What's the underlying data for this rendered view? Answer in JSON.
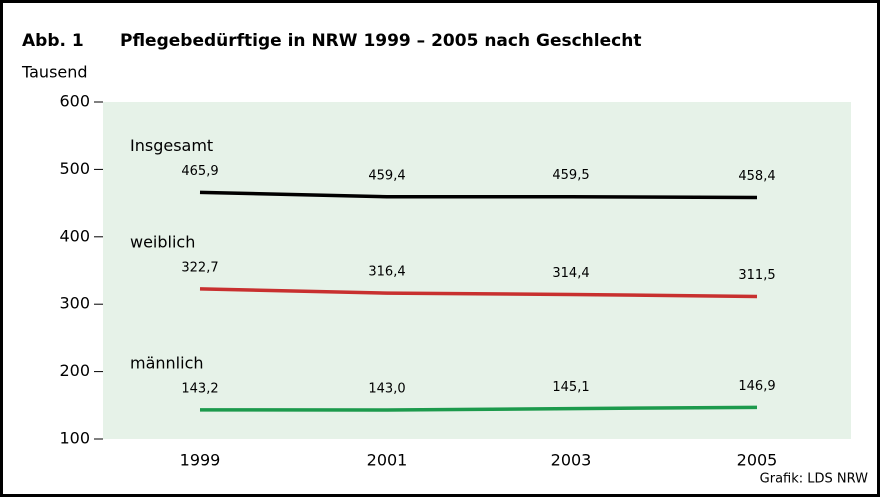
{
  "chart_data": {
    "type": "line",
    "label": "Abb. 1",
    "title": "Pflegebedürftige in NRW 1999 – 2005 nach Geschlecht",
    "y_label": "Tausend",
    "source": "Grafik: LDS NRW",
    "categories": [
      "1999",
      "2001",
      "2003",
      "2005"
    ],
    "series": [
      {
        "name": "Insgesamt",
        "color": "#000000",
        "values": [
          465.9,
          459.4,
          459.5,
          458.4
        ],
        "value_labels": [
          "465,9",
          "459,4",
          "459,5",
          "458,4"
        ]
      },
      {
        "name": "weiblich",
        "color": "#c8302f",
        "values": [
          322.7,
          316.4,
          314.4,
          311.5
        ],
        "value_labels": [
          "322,7",
          "316,4",
          "314,4",
          "311,5"
        ]
      },
      {
        "name": "männlich",
        "color": "#1c9a4c",
        "values": [
          143.2,
          143.0,
          145.1,
          146.9
        ],
        "value_labels": [
          "143,2",
          "143,0",
          "145,1",
          "146,9"
        ]
      }
    ],
    "ylim": [
      100,
      600
    ],
    "yticks": [
      100,
      200,
      300,
      400,
      500,
      600
    ],
    "background": "#e6f2e8"
  }
}
